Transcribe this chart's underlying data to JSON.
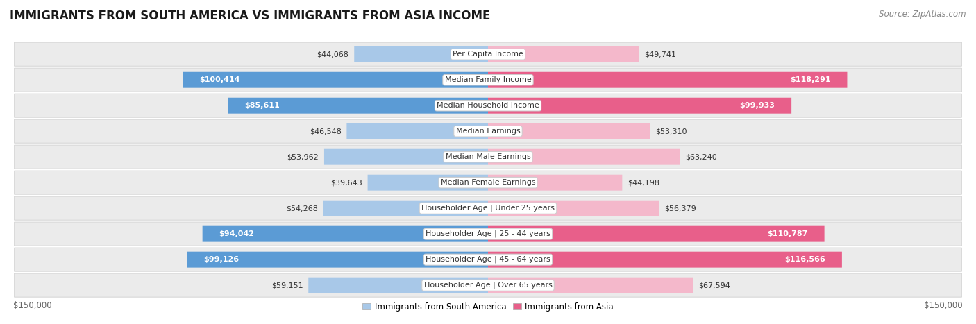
{
  "title": "IMMIGRANTS FROM SOUTH AMERICA VS IMMIGRANTS FROM ASIA INCOME",
  "source": "Source: ZipAtlas.com",
  "categories": [
    "Per Capita Income",
    "Median Family Income",
    "Median Household Income",
    "Median Earnings",
    "Median Male Earnings",
    "Median Female Earnings",
    "Householder Age | Under 25 years",
    "Householder Age | 25 - 44 years",
    "Householder Age | 45 - 64 years",
    "Householder Age | Over 65 years"
  ],
  "south_america_values": [
    44068,
    100414,
    85611,
    46548,
    53962,
    39643,
    54268,
    94042,
    99126,
    59151
  ],
  "asia_values": [
    49741,
    118291,
    99933,
    53310,
    63240,
    44198,
    56379,
    110787,
    116566,
    67594
  ],
  "south_america_labels": [
    "$44,068",
    "$100,414",
    "$85,611",
    "$46,548",
    "$53,962",
    "$39,643",
    "$54,268",
    "$94,042",
    "$99,126",
    "$59,151"
  ],
  "asia_labels": [
    "$49,741",
    "$118,291",
    "$99,933",
    "$53,310",
    "$63,240",
    "$44,198",
    "$56,379",
    "$110,787",
    "$116,566",
    "$67,594"
  ],
  "sa_inside": [
    false,
    true,
    true,
    false,
    false,
    false,
    false,
    true,
    true,
    false
  ],
  "as_inside": [
    false,
    true,
    true,
    false,
    false,
    false,
    false,
    true,
    true,
    false
  ],
  "max_value": 150000,
  "color_south_america_light": "#a8c8e8",
  "color_south_america_dark": "#5b9bd5",
  "color_asia_light": "#f4b8cb",
  "color_asia_dark": "#e85f8a",
  "background_color": "#ffffff",
  "row_bg_light": "#ebebeb",
  "row_bg_border": "#d8d8d8",
  "title_fontsize": 12,
  "source_fontsize": 8.5,
  "bar_label_fontsize": 8,
  "category_fontsize": 8,
  "axis_fontsize": 8.5,
  "inside_threshold": 70000
}
